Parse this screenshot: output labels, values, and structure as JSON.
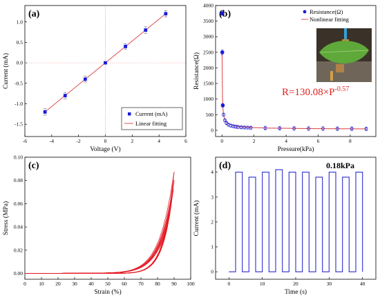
{
  "chart_data": [
    {
      "panel": "(a)",
      "type": "scatter",
      "xlabel": "Voltage (V)",
      "ylabel": "Current (mA)",
      "xlim": [
        -6,
        6
      ],
      "ylim": [
        -1.8,
        1.4
      ],
      "xticks": [
        -6,
        -4,
        -2,
        0,
        2,
        4,
        6
      ],
      "yticks": [
        -1.5,
        -1.0,
        -0.5,
        0.0,
        0.5,
        1.0
      ],
      "ytick_labels": [
        "-1.5",
        "-1.0",
        "-0.5",
        "0.0",
        "0.5",
        "1.0"
      ],
      "series": [
        {
          "name": "Current (mA)",
          "kind": "scatter",
          "color": "#1a1adc",
          "x": [
            -4.5,
            -3.0,
            -1.5,
            0.0,
            1.5,
            3.0,
            4.5
          ],
          "y": [
            -1.2,
            -0.8,
            -0.4,
            0.0,
            0.4,
            0.8,
            1.2
          ],
          "err": [
            0.08,
            0.08,
            0.07,
            0.03,
            0.07,
            0.08,
            0.08
          ]
        },
        {
          "name": "Linear fitting",
          "kind": "line",
          "color": "#e05050",
          "x": [
            -4.5,
            4.5
          ],
          "y": [
            -1.2,
            1.2
          ]
        }
      ],
      "legend": "bottom-right",
      "reference_lines": {
        "x": 0,
        "y": 0
      }
    },
    {
      "panel": "(b)",
      "type": "scatter",
      "xlabel": "Pressure(kPa)",
      "ylabel": "Resistance(Ω)",
      "xlim": [
        -0.4,
        9.6
      ],
      "ylim": [
        -200,
        4000
      ],
      "xticks": [
        0,
        2,
        4,
        6,
        8
      ],
      "yticks": [
        0,
        500,
        1000,
        1500,
        2000,
        2500,
        3000,
        3500,
        4000
      ],
      "series": [
        {
          "name": "Resistance(Ω)",
          "kind": "scatter",
          "color": "#1a1adc",
          "x": [
            0.0,
            0.02,
            0.05,
            0.1,
            0.18,
            0.28,
            0.4,
            0.55,
            0.7,
            0.85,
            1.0,
            1.2,
            1.4,
            1.6,
            1.8,
            2.7,
            3.6,
            4.5,
            5.4,
            6.3,
            7.2,
            8.1,
            9.0
          ],
          "y": [
            3750,
            2500,
            800,
            500,
            320,
            230,
            180,
            150,
            130,
            115,
            105,
            95,
            90,
            85,
            80,
            70,
            65,
            60,
            55,
            55,
            50,
            50,
            45
          ],
          "err": [
            80,
            80,
            60,
            50,
            50,
            50,
            50,
            50,
            50,
            50,
            50,
            50,
            50,
            50,
            50,
            60,
            60,
            60,
            60,
            60,
            60,
            60,
            60
          ]
        },
        {
          "name": "Nonlinear fitting",
          "kind": "line",
          "color": "#e05050",
          "x": [
            0.0,
            0.01,
            0.03,
            0.06,
            0.1,
            0.2,
            0.4,
            0.7,
            1.0,
            1.5,
            2.0,
            3.0,
            4.0,
            5.0,
            6.0,
            7.0,
            8.0,
            9.0
          ],
          "y": [
            2500,
            2300,
            1100,
            700,
            480,
            320,
            220,
            160,
            125,
            100,
            85,
            70,
            62,
            57,
            53,
            50,
            48,
            46
          ]
        }
      ],
      "legend": "top-right",
      "annotation": {
        "base": "R=130.08×P",
        "exp": "-0.57",
        "color": "#e0201c"
      },
      "inset_photo": "leaf-sensor-photo"
    },
    {
      "panel": "(c)",
      "type": "line",
      "xlabel": "Strain (%)",
      "ylabel": "Stress (MPa)",
      "xlim": [
        0,
        100
      ],
      "ylim": [
        -0.005,
        0.1
      ],
      "xticks": [
        0,
        10,
        20,
        30,
        40,
        50,
        60,
        70,
        80,
        90,
        100
      ],
      "yticks": [
        0.0,
        0.02,
        0.04,
        0.06,
        0.08,
        0.1
      ],
      "ytick_labels": [
        "0.00",
        "0.02",
        "0.04",
        "0.06",
        "0.08",
        "0.10"
      ],
      "series": [
        {
          "kind": "cycles",
          "color": "#e3121c",
          "count": 12,
          "x_end": [
            84,
            85,
            86,
            86.5,
            87,
            87.5,
            88,
            88.5,
            89,
            89.5,
            90,
            90
          ],
          "y_end": [
            0.032,
            0.036,
            0.04,
            0.044,
            0.048,
            0.052,
            0.057,
            0.062,
            0.067,
            0.072,
            0.08,
            0.087
          ]
        }
      ]
    },
    {
      "panel": "(d)",
      "type": "line",
      "xlabel": "Time (s)",
      "ylabel": "Current (mA)",
      "xlim": [
        -4,
        44
      ],
      "ylim": [
        -0.3,
        4.6
      ],
      "xticks": [
        0,
        10,
        20,
        30,
        40
      ],
      "yticks": [
        0,
        1,
        2,
        3,
        4
      ],
      "annotation": "0.18kPa",
      "series": [
        {
          "kind": "pulses",
          "color": "#2a2ad0",
          "start": [
            2,
            6,
            10,
            14,
            18,
            22,
            26,
            30,
            34,
            38
          ],
          "end": [
            4,
            8,
            12,
            16,
            20,
            24,
            28,
            32,
            36,
            40
          ],
          "height": [
            4.0,
            3.8,
            4.0,
            4.1,
            4.0,
            4.0,
            3.8,
            4.0,
            3.8,
            4.0
          ]
        }
      ]
    }
  ]
}
